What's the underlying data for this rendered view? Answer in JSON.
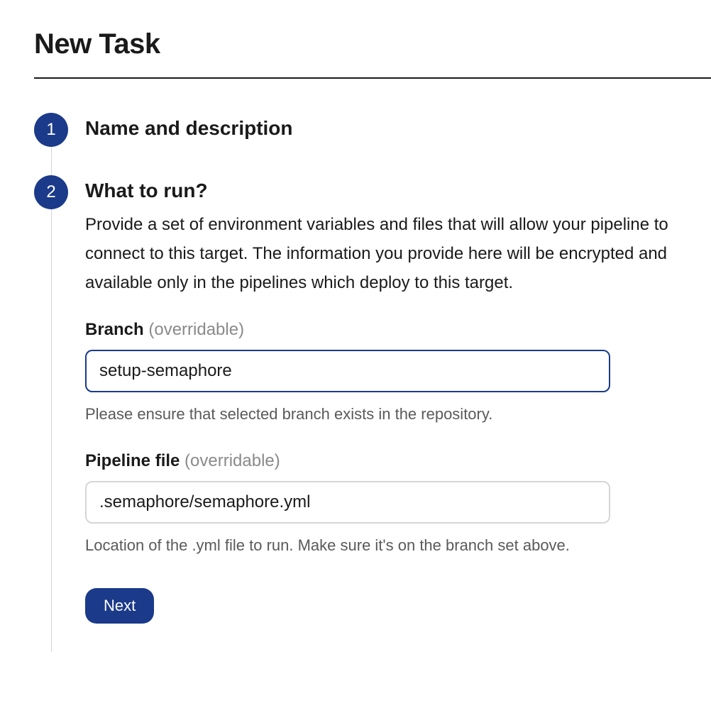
{
  "page": {
    "title": "New Task"
  },
  "colors": {
    "accent": "#1b3a8a",
    "text": "#1a1a1a",
    "muted": "#8a8a8a",
    "help": "#5a5a5a",
    "border": "#d6d6d6",
    "connector": "#d6d6d6",
    "background": "#ffffff"
  },
  "steps": {
    "step1": {
      "number": "1",
      "title": "Name and description"
    },
    "step2": {
      "number": "2",
      "title": "What to run?",
      "description": "Provide a set of environment variables and files that will allow your pipeline to connect to this target. The information you provide here will be encrypted and available only in the pipelines which deploy to this target.",
      "branch": {
        "label": "Branch",
        "hint": " (overridable)",
        "value": "setup-semaphore",
        "help": "Please ensure that selected branch exists in the repository."
      },
      "pipeline": {
        "label": "Pipeline file",
        "hint": " (overridable)",
        "value": ".semaphore/semaphore.yml",
        "help": "Location of the .yml file to run. Make sure it's on the branch set above."
      },
      "next_label": "Next"
    }
  }
}
